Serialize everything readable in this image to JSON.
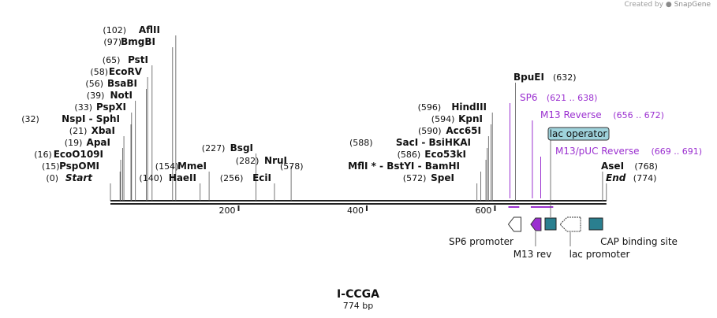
{
  "credit": {
    "prefix": "Created by",
    "brand": "SnapGene"
  },
  "sequence": {
    "name": "I-CCGA",
    "length_label": "774 bp",
    "length": 774
  },
  "colors": {
    "text": "#111111",
    "primer": "#9b30d0",
    "feature_teal": "#2a7f8f",
    "operator_fill": "#9fd3dc",
    "leader": "#555555"
  },
  "axis": {
    "ticks": [
      {
        "pos": 200,
        "label": "200"
      },
      {
        "pos": 400,
        "label": "400"
      },
      {
        "pos": 600,
        "label": "600"
      }
    ]
  },
  "sites": [
    {
      "pos": 102,
      "num": "(102)",
      "name": "AflII"
    },
    {
      "pos": 97,
      "num": "(97)",
      "name": "BmgBI"
    },
    {
      "pos": 65,
      "num": "(65)",
      "name": "PstI"
    },
    {
      "pos": 58,
      "num": "(58)",
      "name": "EcoRV"
    },
    {
      "pos": 56,
      "num": "(56)",
      "name": "BsaBI"
    },
    {
      "pos": 39,
      "num": "(39)",
      "name": "NotI"
    },
    {
      "pos": 33,
      "num": "(33)",
      "name": "PspXI"
    },
    {
      "pos": 32,
      "num": "(32)",
      "name": "NspI  -  SphI"
    },
    {
      "pos": 21,
      "num": "(21)",
      "name": "XbaI"
    },
    {
      "pos": 19,
      "num": "(19)",
      "name": "ApaI"
    },
    {
      "pos": 16,
      "num": "(16)",
      "name": "EcoO109I"
    },
    {
      "pos": 15,
      "num": "(15)",
      "name": "PspOMI"
    },
    {
      "pos": 0,
      "num": "(0)",
      "name": "Start"
    },
    {
      "pos": 154,
      "num": "(154)",
      "name": "MmeI"
    },
    {
      "pos": 140,
      "num": "(140)",
      "name": "HaeII"
    },
    {
      "pos": 227,
      "num": "(227)",
      "name": "BsgI"
    },
    {
      "pos": 282,
      "num": "(282)",
      "name": "NruI"
    },
    {
      "pos": 256,
      "num": "(256)",
      "name": "EciI"
    },
    {
      "pos": 596,
      "num": "(596)",
      "name": "HindIII"
    },
    {
      "pos": 594,
      "num": "(594)",
      "name": "KpnI"
    },
    {
      "pos": 590,
      "num": "(590)",
      "name": "Acc65I"
    },
    {
      "pos": 588,
      "num": "(588)",
      "name": "SacI  -  BsiHKAI"
    },
    {
      "pos": 586,
      "num": "(586)",
      "name": "Eco53kI"
    },
    {
      "pos": 578,
      "num": "(578)",
      "name": "MflI *  -  BstYI  -  BamHI"
    },
    {
      "pos": 572,
      "num": "(572)",
      "name": "SpeI"
    },
    {
      "pos": 632,
      "num": "(632)",
      "name": "BpuEI"
    },
    {
      "pos": 768,
      "num": "(768)",
      "name": "AseI"
    },
    {
      "pos": 774,
      "num": "(774)",
      "name": "End"
    }
  ],
  "primers": [
    {
      "name": "SP6",
      "range": "(621 .. 638)",
      "start": 621,
      "end": 638
    },
    {
      "name": "M13 Reverse",
      "range": "(656 .. 672)",
      "start": 656,
      "end": 672
    },
    {
      "name": "M13/pUC Reverse",
      "range": "(669 .. 691)",
      "start": 669,
      "end": 691
    }
  ],
  "features": [
    {
      "name": "SP6 promoter",
      "start": 621,
      "end": 640,
      "kind": "promoter"
    },
    {
      "name": "M13 rev",
      "start": 656,
      "end": 672,
      "kind": "primer_bind"
    },
    {
      "name": "lac operator",
      "start": 676,
      "end": 692,
      "kind": "operator"
    },
    {
      "name": "lac promoter",
      "start": 697,
      "end": 727,
      "kind": "promoter"
    },
    {
      "name": "CAP binding site",
      "start": 741,
      "end": 763,
      "kind": "site"
    }
  ]
}
